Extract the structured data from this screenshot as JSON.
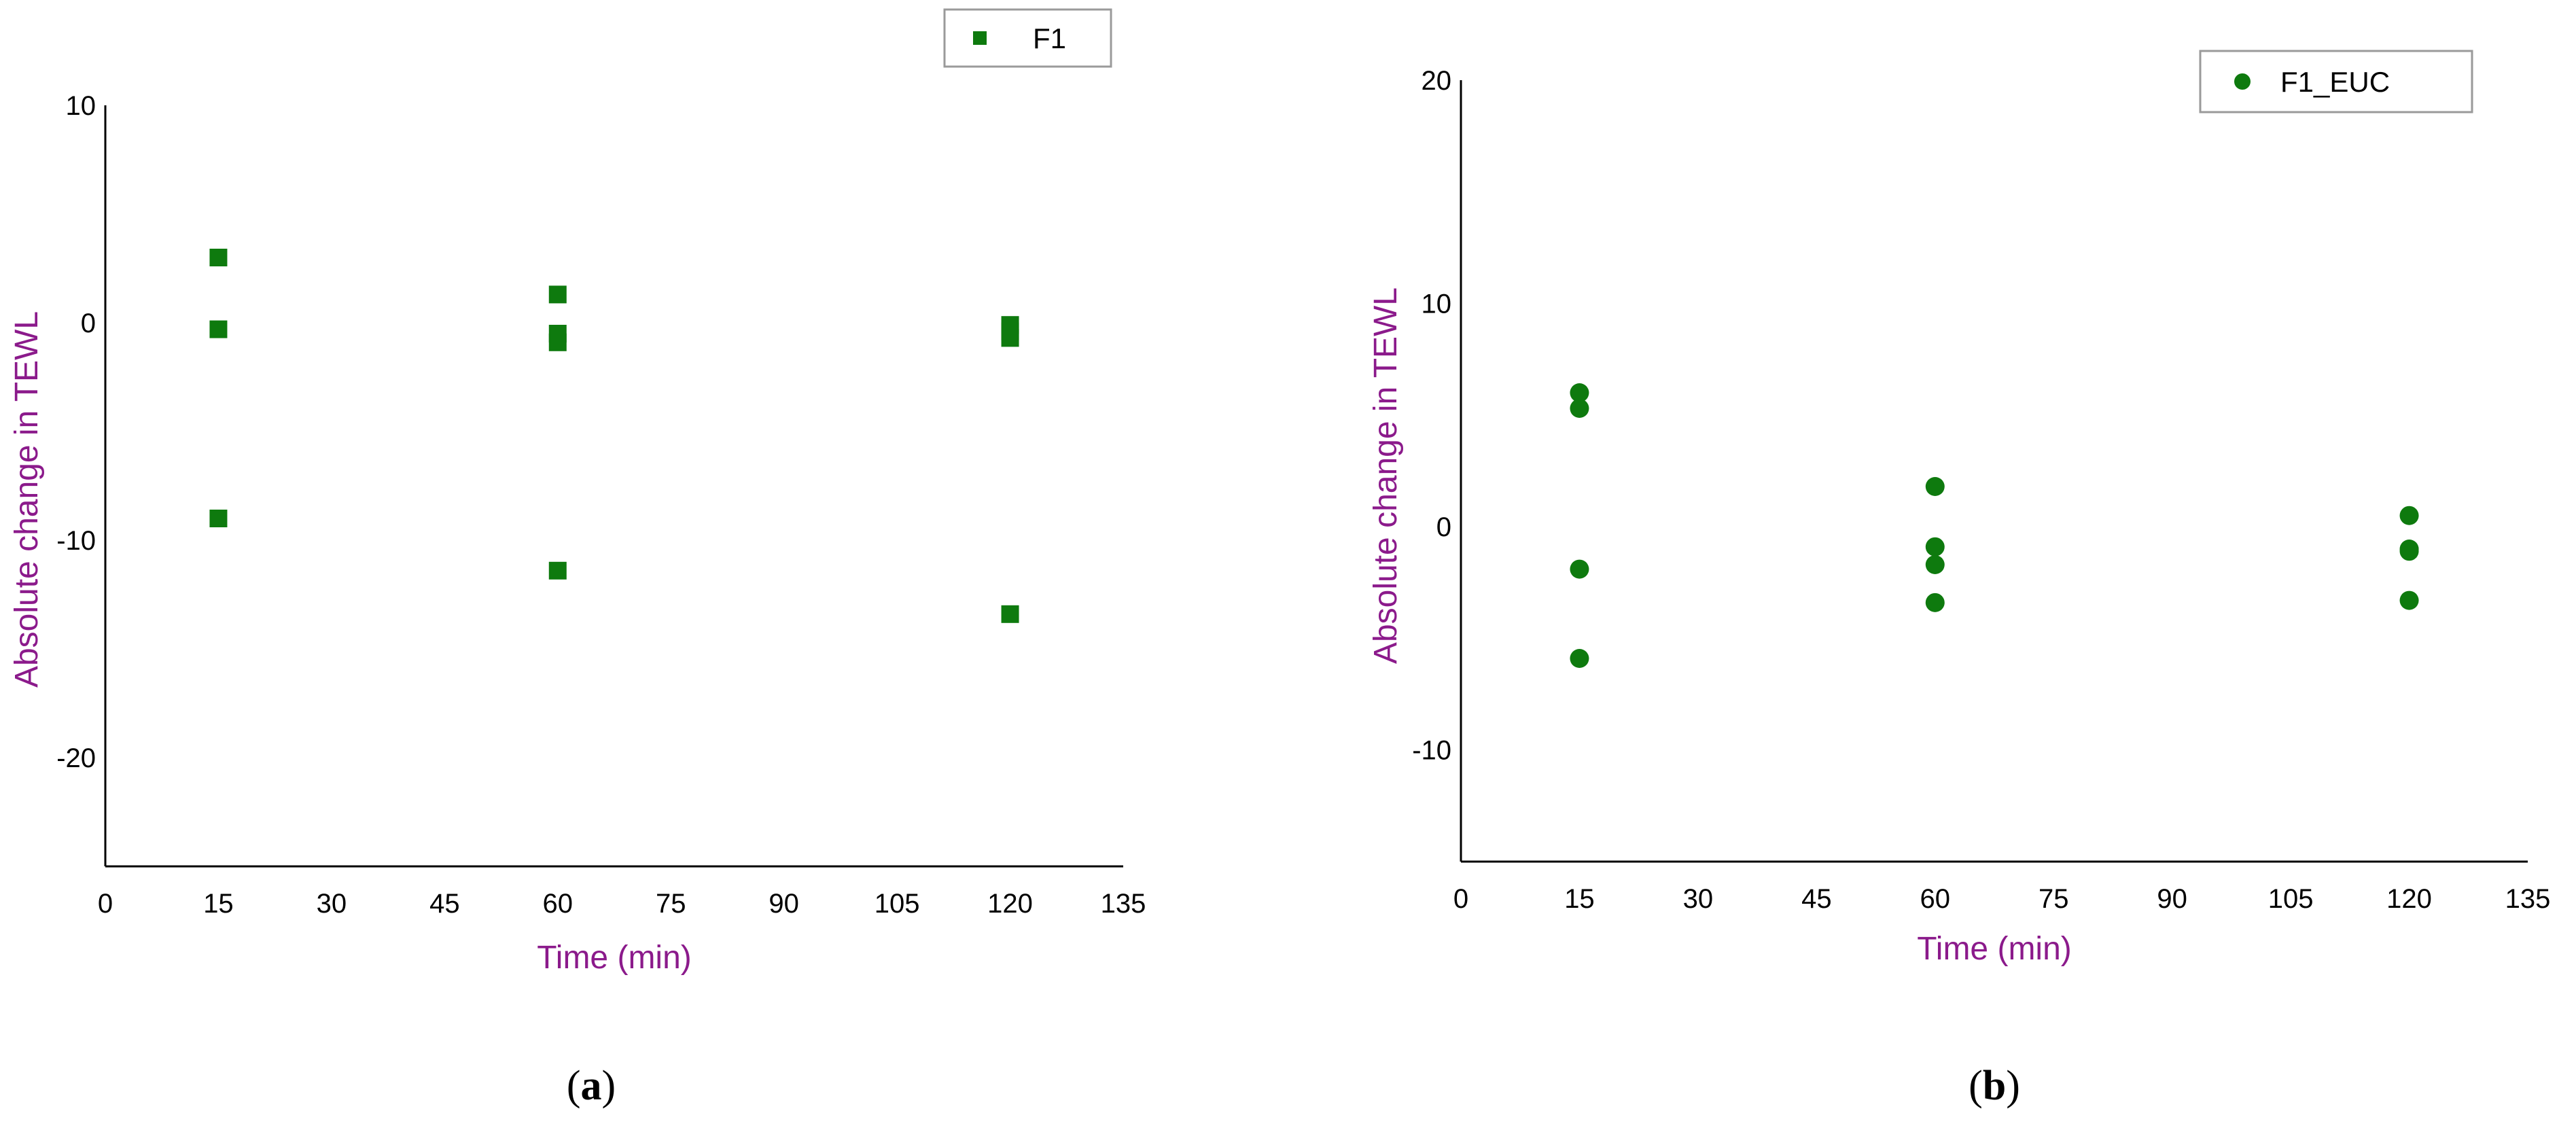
{
  "style": {
    "marker_color": "#0e7a0e",
    "axis_title_color": "#8b1a8b",
    "axis_color": "#000000",
    "legend_border_color": "#9a9a9a"
  },
  "chart_data": [
    {
      "type": "scatter",
      "panel_label": {
        "open": "(",
        "letter": "a",
        "close": ")"
      },
      "xlabel": "Time (min)",
      "ylabel": "Absolute change in TEWL",
      "xlim": [
        0,
        135
      ],
      "ylim": [
        -25,
        10
      ],
      "xticks": [
        "0",
        "15",
        "30",
        "45",
        "60",
        "75",
        "90",
        "105",
        "120",
        "135"
      ],
      "yticks": [
        "10",
        "0",
        "-10",
        "-20"
      ],
      "grid": false,
      "legend": {
        "position": "top-right",
        "marker": "square"
      },
      "series": [
        {
          "name": "F1",
          "marker": "square",
          "points": [
            [
              15,
              3.0
            ],
            [
              15,
              -0.3
            ],
            [
              15,
              -9.0
            ],
            [
              60,
              1.3
            ],
            [
              60,
              -0.5
            ],
            [
              60,
              -0.9
            ],
            [
              60,
              -11.4
            ],
            [
              120,
              -0.1
            ],
            [
              120,
              -0.4
            ],
            [
              120,
              -0.7
            ],
            [
              120,
              -13.4
            ]
          ]
        }
      ]
    },
    {
      "type": "scatter",
      "panel_label": {
        "open": "(",
        "letter": "b",
        "close": ")"
      },
      "xlabel": "Time (min)",
      "ylabel": "Absolute change in TEWL",
      "xlim": [
        0,
        135
      ],
      "ylim": [
        -15,
        20
      ],
      "xticks": [
        "0",
        "15",
        "30",
        "45",
        "60",
        "75",
        "90",
        "105",
        "120",
        "135"
      ],
      "yticks": [
        "20",
        "10",
        "0",
        "-10"
      ],
      "grid": false,
      "legend": {
        "position": "top-right",
        "marker": "circle"
      },
      "series": [
        {
          "name": "F1_EUC",
          "marker": "circle",
          "points": [
            [
              15,
              6.0
            ],
            [
              15,
              5.3
            ],
            [
              15,
              -1.9
            ],
            [
              15,
              -5.9
            ],
            [
              60,
              1.8
            ],
            [
              60,
              -0.9
            ],
            [
              60,
              -1.7
            ],
            [
              60,
              -3.4
            ],
            [
              120,
              0.5
            ],
            [
              120,
              -1.0
            ],
            [
              120,
              -1.1
            ],
            [
              120,
              -3.3
            ]
          ]
        }
      ]
    }
  ]
}
